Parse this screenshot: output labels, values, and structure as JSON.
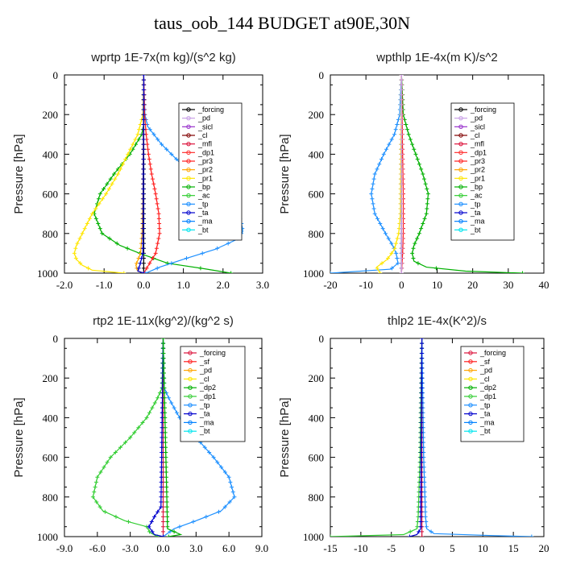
{
  "title": "taus_oob_144  BUDGET at90E,30N",
  "chart_data": [
    {
      "type": "line",
      "title": "wprtp  1E-7x(m kg)/(s^2 kg)",
      "ylabel": "Pressure [hPa]",
      "xlim": [
        -2.0,
        3.0
      ],
      "ylim": [
        1000,
        0
      ],
      "xticks": [
        "-2.0",
        "-1.0",
        "0.0",
        "1.0",
        "2.0",
        "3.0"
      ],
      "yticks": [
        "0",
        "200",
        "400",
        "600",
        "800",
        "1000"
      ],
      "legend": [
        "_forcing",
        "_pd",
        "_sicl",
        "_cl",
        "_mfl",
        "_dp1",
        "_pr3",
        "_pr2",
        "_pr1",
        "_bp",
        "_ac",
        "_tp",
        "_ta",
        "_ma",
        "_bt"
      ],
      "legend_colors": [
        "#000000",
        "#c8a0e6",
        "#9932cc",
        "#800000",
        "#dc143c",
        "#ff3030",
        "#ff2020",
        "#ffa500",
        "#ffe600",
        "#00b000",
        "#32cd32",
        "#1e90ff",
        "#0000cd",
        "#0080ff",
        "#00e5ee"
      ],
      "series": [
        {
          "name": "_forcing",
          "color": "#000000",
          "p": [
            0,
            200,
            400,
            600,
            800,
            1000
          ],
          "v": [
            0,
            0,
            0,
            0,
            0,
            0
          ]
        },
        {
          "name": "_ac",
          "color": "#00b000",
          "p": [
            0,
            250,
            300,
            400,
            500,
            600,
            700,
            800,
            860,
            900,
            950,
            980,
            1000
          ],
          "v": [
            0,
            0,
            -0.05,
            -0.35,
            -0.75,
            -1.1,
            -1.25,
            -1.05,
            -0.6,
            -0.1,
            0.6,
            1.6,
            2.2
          ]
        },
        {
          "name": "_pr1",
          "color": "#ffe600",
          "p": [
            0,
            200,
            300,
            400,
            500,
            600,
            700,
            800,
            860,
            900,
            930,
            960,
            985,
            1000
          ],
          "v": [
            0,
            -0.02,
            -0.15,
            -0.4,
            -0.65,
            -0.95,
            -1.3,
            -1.55,
            -1.7,
            -1.75,
            -1.7,
            -1.55,
            -1.3,
            -0.5
          ]
        },
        {
          "name": "_tp",
          "color": "#1e90ff",
          "p": [
            0,
            200,
            260,
            350,
            450,
            550,
            650,
            730,
            790,
            830,
            880,
            930,
            970,
            1000
          ],
          "v": [
            0,
            0.03,
            0.1,
            0.45,
            0.95,
            1.55,
            2.1,
            2.45,
            2.5,
            2.35,
            1.8,
            1.0,
            0.4,
            0.05
          ]
        },
        {
          "name": "_pr3",
          "color": "#ff2020",
          "p": [
            0,
            200,
            300,
            400,
            500,
            600,
            700,
            800,
            900,
            950,
            1000
          ],
          "v": [
            0,
            0.02,
            0.06,
            0.12,
            0.2,
            0.3,
            0.38,
            0.4,
            0.3,
            0.15,
            0
          ]
        },
        {
          "name": "_bp",
          "color": "#ffa500",
          "p": [
            0,
            600,
            800,
            900,
            960,
            990,
            1000
          ],
          "v": [
            0,
            -0.02,
            -0.04,
            -0.08,
            -0.2,
            -0.15,
            0
          ]
        },
        {
          "name": "_ta",
          "color": "#0000cd",
          "p": [
            0,
            900,
            960,
            990,
            1000
          ],
          "v": [
            0,
            -0.02,
            -0.1,
            -0.15,
            0
          ]
        }
      ]
    },
    {
      "type": "line",
      "title": "wpthlp  1E-4x(m K)/s^2",
      "ylabel": "Pressure [hPa]",
      "xlim": [
        -20,
        40
      ],
      "ylim": [
        1000,
        0
      ],
      "xticks": [
        "-20",
        "-10",
        "0",
        "10",
        "20",
        "30",
        "40"
      ],
      "yticks": [
        "0",
        "200",
        "400",
        "600",
        "800",
        "1000"
      ],
      "legend": [
        "_forcing",
        "_pd",
        "_sicl",
        "_cl",
        "_mfl",
        "_dp1",
        "_pr3",
        "_pr2",
        "_pr1",
        "_bp",
        "_ac",
        "_tp",
        "_ta",
        "_ma",
        "_bt"
      ],
      "legend_colors": [
        "#000000",
        "#c8a0e6",
        "#9932cc",
        "#800000",
        "#dc143c",
        "#ff3030",
        "#ff2020",
        "#ffa500",
        "#ffe600",
        "#00b000",
        "#32cd32",
        "#1e90ff",
        "#0000cd",
        "#0080ff",
        "#00e5ee"
      ],
      "series": [
        {
          "name": "_forcing",
          "color": "#000000",
          "p": [
            0,
            1000
          ],
          "v": [
            0,
            0
          ]
        },
        {
          "name": "_ac",
          "color": "#00b000",
          "p": [
            0,
            200,
            300,
            400,
            500,
            600,
            700,
            800,
            860,
            900,
            940,
            970,
            990,
            1000
          ],
          "v": [
            0,
            0.5,
            2,
            4,
            6,
            7.5,
            7,
            5,
            3.5,
            3,
            3.5,
            7,
            18,
            34
          ]
        },
        {
          "name": "_tp",
          "color": "#1e90ff",
          "p": [
            0,
            200,
            300,
            400,
            500,
            600,
            700,
            800,
            860,
            900,
            950,
            980,
            1000
          ],
          "v": [
            0,
            -0.5,
            -2,
            -5,
            -7.5,
            -8.5,
            -7.5,
            -4.5,
            -2.5,
            -1.5,
            -1,
            -3,
            -20
          ]
        },
        {
          "name": "_pr1",
          "color": "#ffe600",
          "p": [
            0,
            700,
            800,
            880,
            930,
            970,
            1000
          ],
          "v": [
            0,
            -0.3,
            -0.8,
            -2,
            -4,
            -7,
            -6
          ]
        },
        {
          "name": "_pr3",
          "color": "#ff2020",
          "p": [
            0,
            400,
            600,
            800,
            900,
            1000
          ],
          "v": [
            0,
            0.3,
            0.5,
            0.5,
            0.3,
            0
          ]
        },
        {
          "name": "_pd",
          "color": "#c8a0e6",
          "p": [
            0,
            1000
          ],
          "v": [
            0,
            0
          ]
        }
      ]
    },
    {
      "type": "line",
      "title": "rtp2  1E-11x(kg^2)/(kg^2 s)",
      "ylabel": "Pressure [hPa]",
      "xlim": [
        -9.0,
        9.0
      ],
      "ylim": [
        1000,
        0
      ],
      "xticks": [
        "-9.0",
        "-6.0",
        "-3.0",
        "0.0",
        "3.0",
        "6.0",
        "9.0"
      ],
      "yticks": [
        "0",
        "200",
        "400",
        "600",
        "800",
        "1000"
      ],
      "legend": [
        "_forcing",
        "_sf",
        "_pd",
        "_cl",
        "_dp2",
        "_dp1",
        "_tp",
        "_ta",
        "_ma",
        "_bt"
      ],
      "legend_colors": [
        "#dc143c",
        "#ff2020",
        "#ffa500",
        "#ffe600",
        "#00b000",
        "#32cd32",
        "#1e90ff",
        "#0000cd",
        "#0080ff",
        "#00e5ee"
      ],
      "series": [
        {
          "name": "_forcing",
          "color": "#dc143c",
          "p": [
            0,
            200,
            400,
            600,
            800,
            1000
          ],
          "v": [
            0,
            0,
            0,
            0,
            0,
            0
          ]
        },
        {
          "name": "_dp1",
          "color": "#32cd32",
          "p": [
            0,
            250,
            300,
            400,
            500,
            600,
            700,
            800,
            870,
            920,
            950,
            980,
            1000
          ],
          "v": [
            0,
            -0.1,
            -0.5,
            -1.5,
            -3.0,
            -4.8,
            -6.0,
            -6.4,
            -5.5,
            -3.5,
            -1.5,
            -1.2,
            -0.5
          ]
        },
        {
          "name": "_tp",
          "color": "#1e90ff",
          "p": [
            0,
            250,
            300,
            400,
            500,
            600,
            700,
            800,
            870,
            920,
            960,
            1000
          ],
          "v": [
            0,
            0.1,
            0.5,
            1.5,
            3.0,
            4.6,
            6.0,
            6.5,
            5.3,
            3.0,
            1.0,
            0
          ]
        },
        {
          "name": "_ta",
          "color": "#0000cd",
          "p": [
            0,
            850,
            900,
            950,
            990,
            1000
          ],
          "v": [
            0,
            -0.2,
            -0.8,
            -1.3,
            -0.8,
            0
          ]
        },
        {
          "name": "_dp2",
          "color": "#00b000",
          "p": [
            0,
            960,
            990,
            1000
          ],
          "v": [
            0,
            0.4,
            1.6,
            0.5
          ]
        }
      ]
    },
    {
      "type": "line",
      "title": "thlp2  1E-4x(K^2)/s",
      "ylabel": "Pressure [hPa]",
      "xlim": [
        -15,
        20
      ],
      "ylim": [
        1000,
        0
      ],
      "xticks": [
        "-15",
        "-10",
        "-5",
        "0",
        "5",
        "10",
        "15",
        "20"
      ],
      "yticks": [
        "0",
        "200",
        "400",
        "600",
        "800",
        "1000"
      ],
      "legend": [
        "_forcing",
        "_sf",
        "_pd",
        "_cl",
        "_dp2",
        "_dp1",
        "_tp",
        "_ta",
        "_ma",
        "_bt"
      ],
      "legend_colors": [
        "#dc143c",
        "#ff2020",
        "#ffa500",
        "#ffe600",
        "#00b000",
        "#32cd32",
        "#1e90ff",
        "#0000cd",
        "#0080ff",
        "#00e5ee"
      ],
      "series": [
        {
          "name": "_forcing",
          "color": "#dc143c",
          "p": [
            0,
            1000
          ],
          "v": [
            0,
            0
          ]
        },
        {
          "name": "_tp",
          "color": "#1e90ff",
          "p": [
            0,
            600,
            800,
            900,
            960,
            985,
            995,
            1000
          ],
          "v": [
            0,
            0.3,
            0.5,
            0.6,
            0.8,
            2.0,
            12,
            18
          ]
        },
        {
          "name": "_dp1",
          "color": "#32cd32",
          "p": [
            0,
            600,
            800,
            900,
            960,
            990,
            1000
          ],
          "v": [
            0,
            -0.3,
            -0.5,
            -0.6,
            -0.8,
            -3,
            -15
          ]
        },
        {
          "name": "_ta",
          "color": "#0000cd",
          "p": [
            0,
            960,
            990,
            1000
          ],
          "v": [
            0,
            -0.2,
            -0.8,
            -2
          ]
        }
      ]
    }
  ]
}
